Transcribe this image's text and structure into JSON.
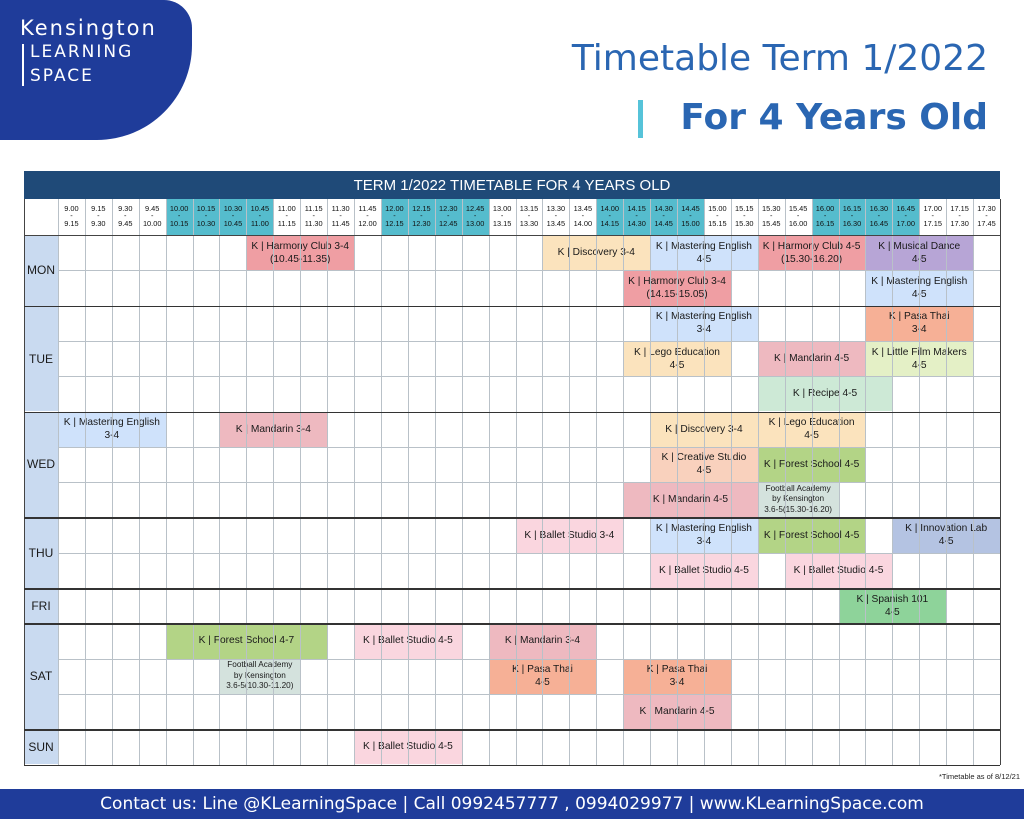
{
  "brand": {
    "name": "Kensington",
    "line2": "LEARNING",
    "line3": "SPACE"
  },
  "title": {
    "line1": "Timetable Term 1/2022",
    "line2": "For 4 Years Old"
  },
  "table_title": "TERM 1/2022 TIMETABLE FOR 4 YEARS OLD",
  "time_slots": [
    {
      "start": "9.00",
      "end": "9.15"
    },
    {
      "start": "9.15",
      "end": "9.30"
    },
    {
      "start": "9.30",
      "end": "9.45"
    },
    {
      "start": "9.45",
      "end": "10.00"
    },
    {
      "start": "10.00",
      "end": "10.15"
    },
    {
      "start": "10.15",
      "end": "10.30"
    },
    {
      "start": "10.30",
      "end": "10.45"
    },
    {
      "start": "10.45",
      "end": "11.00"
    },
    {
      "start": "11.00",
      "end": "11.15"
    },
    {
      "start": "11.15",
      "end": "11.30"
    },
    {
      "start": "11.30",
      "end": "11.45"
    },
    {
      "start": "11.45",
      "end": "12.00"
    },
    {
      "start": "12.00",
      "end": "12.15"
    },
    {
      "start": "12.15",
      "end": "12.30"
    },
    {
      "start": "12.30",
      "end": "12.45"
    },
    {
      "start": "12.45",
      "end": "13.00"
    },
    {
      "start": "13.00",
      "end": "13.15"
    },
    {
      "start": "13.15",
      "end": "13.30"
    },
    {
      "start": "13.30",
      "end": "13.45"
    },
    {
      "start": "13.45",
      "end": "14.00"
    },
    {
      "start": "14.00",
      "end": "14.15"
    },
    {
      "start": "14.15",
      "end": "14.30"
    },
    {
      "start": "14.30",
      "end": "14.45"
    },
    {
      "start": "14.45",
      "end": "15.00"
    },
    {
      "start": "15.00",
      "end": "15.15"
    },
    {
      "start": "15.15",
      "end": "15.30"
    },
    {
      "start": "15.30",
      "end": "15.45"
    },
    {
      "start": "15.45",
      "end": "16.00"
    },
    {
      "start": "16.00",
      "end": "16.15"
    },
    {
      "start": "16.15",
      "end": "16.30"
    },
    {
      "start": "16.30",
      "end": "16.45"
    },
    {
      "start": "16.45",
      "end": "17.00"
    },
    {
      "start": "17.00",
      "end": "17.15"
    },
    {
      "start": "17.15",
      "end": "17.30"
    },
    {
      "start": "17.30",
      "end": "17.45"
    }
  ],
  "highlight_slots": [
    4,
    5,
    6,
    7,
    12,
    13,
    14,
    15,
    20,
    21,
    22,
    23,
    28,
    29,
    30,
    31
  ],
  "days": [
    {
      "label": "MON",
      "rows": 2
    },
    {
      "label": "TUE",
      "rows": 3
    },
    {
      "label": "WED",
      "rows": 3
    },
    {
      "label": "THU",
      "rows": 2
    },
    {
      "label": "FRI",
      "rows": 1
    },
    {
      "label": "SAT",
      "rows": 3
    },
    {
      "label": "SUN",
      "rows": 1
    }
  ],
  "colors": {
    "header": "#1f4a78",
    "slot_highlight": "#55bccd",
    "day": "#c9daf0",
    "brand": "#1f3c9a",
    "title": "#2a66b2"
  },
  "events": [
    {
      "row": 0,
      "start": 7,
      "span": 4,
      "text": "K | Harmony Club 3-4\n(10.45-11.35)",
      "color": "#ef9ea3"
    },
    {
      "row": 0,
      "start": 18,
      "span": 4,
      "text": "K | Discovery 3-4",
      "color": "#fbe3bd"
    },
    {
      "row": 0,
      "start": 22,
      "span": 4,
      "text": "K | Mastering English\n4-5",
      "color": "#cfe2fb"
    },
    {
      "row": 0,
      "start": 26,
      "span": 4,
      "text": "K | Harmony Club 4-5\n(15.30-16.20)",
      "color": "#ef9ea3"
    },
    {
      "row": 0,
      "start": 30,
      "span": 4,
      "text": "K | Musical Dance\n4-5",
      "color": "#b7a5d6"
    },
    {
      "row": 1,
      "start": 21,
      "span": 4,
      "text": "K | Harmony Club 3-4\n(14.15-15.05)",
      "color": "#ef9ea3"
    },
    {
      "row": 1,
      "start": 30,
      "span": 4,
      "text": "K | Mastering English\n4-5",
      "color": "#cfe2fb"
    },
    {
      "row": 2,
      "start": 22,
      "span": 4,
      "text": "K | Mastering English\n3-4",
      "color": "#cfe2fb"
    },
    {
      "row": 2,
      "start": 30,
      "span": 4,
      "text": "K | Pasa Thai\n3-4",
      "color": "#f6b096"
    },
    {
      "row": 3,
      "start": 21,
      "span": 4,
      "text": "K | Lego Education\n4-5",
      "color": "#fbe3bd"
    },
    {
      "row": 3,
      "start": 26,
      "span": 4,
      "text": "K | Mandarin 4-5",
      "color": "#eeb9c0"
    },
    {
      "row": 3,
      "start": 30,
      "span": 4,
      "text": "K | Little Film Makers\n4-5",
      "color": "#e4f0c6"
    },
    {
      "row": 4,
      "start": 26,
      "span": 5,
      "text": "K | Recipe 4-5",
      "color": "#cde9d6"
    },
    {
      "row": 5,
      "start": 0,
      "span": 4,
      "text": "K | Mastering English\n3-4",
      "color": "#cfe2fb"
    },
    {
      "row": 5,
      "start": 6,
      "span": 4,
      "text": "K | Mandarin  3-4",
      "color": "#eeb9c0"
    },
    {
      "row": 5,
      "start": 22,
      "span": 4,
      "text": "K | Discovery 3-4",
      "color": "#fbe3bd"
    },
    {
      "row": 5,
      "start": 26,
      "span": 4,
      "text": "K | Lego Education\n4-5",
      "color": "#fbe3bd"
    },
    {
      "row": 6,
      "start": 22,
      "span": 4,
      "text": "K | Creative Studio\n4-5",
      "color": "#f9d1bd"
    },
    {
      "row": 6,
      "start": 26,
      "span": 4,
      "text": "K | Forest School 4-5",
      "color": "#b3d486"
    },
    {
      "row": 7,
      "start": 21,
      "span": 5,
      "text": "K | Mandarin 4-5",
      "color": "#eeb9c0"
    },
    {
      "row": 7,
      "start": 26,
      "span": 3,
      "text": "Football Academy\nby Kensington\n3.6-5(15.30-16.20)",
      "color": "#d4e2dd",
      "small": true
    },
    {
      "row": 8,
      "start": 17,
      "span": 4,
      "text": "K | Ballet Studio 3-4",
      "color": "#fad6df"
    },
    {
      "row": 8,
      "start": 22,
      "span": 4,
      "text": "K | Mastering English\n3-4",
      "color": "#cfe2fb"
    },
    {
      "row": 8,
      "start": 26,
      "span": 4,
      "text": "K | Forest School 4-5",
      "color": "#b3d486"
    },
    {
      "row": 8,
      "start": 31,
      "span": 4,
      "text": "K | Innovation Lab\n4-5",
      "color": "#b4c3e2"
    },
    {
      "row": 9,
      "start": 22,
      "span": 4,
      "text": "K | Ballet Studio 4-5",
      "color": "#fad6df"
    },
    {
      "row": 9,
      "start": 27,
      "span": 4,
      "text": "K | Ballet Studio 4-5",
      "color": "#fad6df"
    },
    {
      "row": 10,
      "start": 29,
      "span": 4,
      "text": "K | Spanish 101\n4-5",
      "color": "#8ed39a"
    },
    {
      "row": 11,
      "start": 4,
      "span": 6,
      "text": "K | Forest School 4-7",
      "color": "#b3d486"
    },
    {
      "row": 11,
      "start": 11,
      "span": 4,
      "text": "K | Ballet Studio 4-5",
      "color": "#fad6df"
    },
    {
      "row": 11,
      "start": 16,
      "span": 4,
      "text": "K | Mandarin  3-4",
      "color": "#eeb9c0"
    },
    {
      "row": 12,
      "start": 6,
      "span": 3,
      "text": "Football Academy\nby Kensington\n3.6-5(10.30-11.20)",
      "color": "#d4e2dd",
      "small": true
    },
    {
      "row": 12,
      "start": 16,
      "span": 4,
      "text": "K | Pasa Thai\n4-5",
      "color": "#f6b096"
    },
    {
      "row": 12,
      "start": 21,
      "span": 4,
      "text": "K | Pasa Thai\n3-4",
      "color": "#f6b096"
    },
    {
      "row": 13,
      "start": 21,
      "span": 4,
      "text": "K | Mandarin 4-5",
      "color": "#eeb9c0"
    },
    {
      "row": 14,
      "start": 11,
      "span": 4,
      "text": "K | Ballet Studio 4-5",
      "color": "#fad6df"
    }
  ],
  "note": "*Timetable as of 8/12/21",
  "footer": "Contact us: Line @KLearningSpace | Call 0992457777 , 0994029977 | www.KLearningSpace.com"
}
